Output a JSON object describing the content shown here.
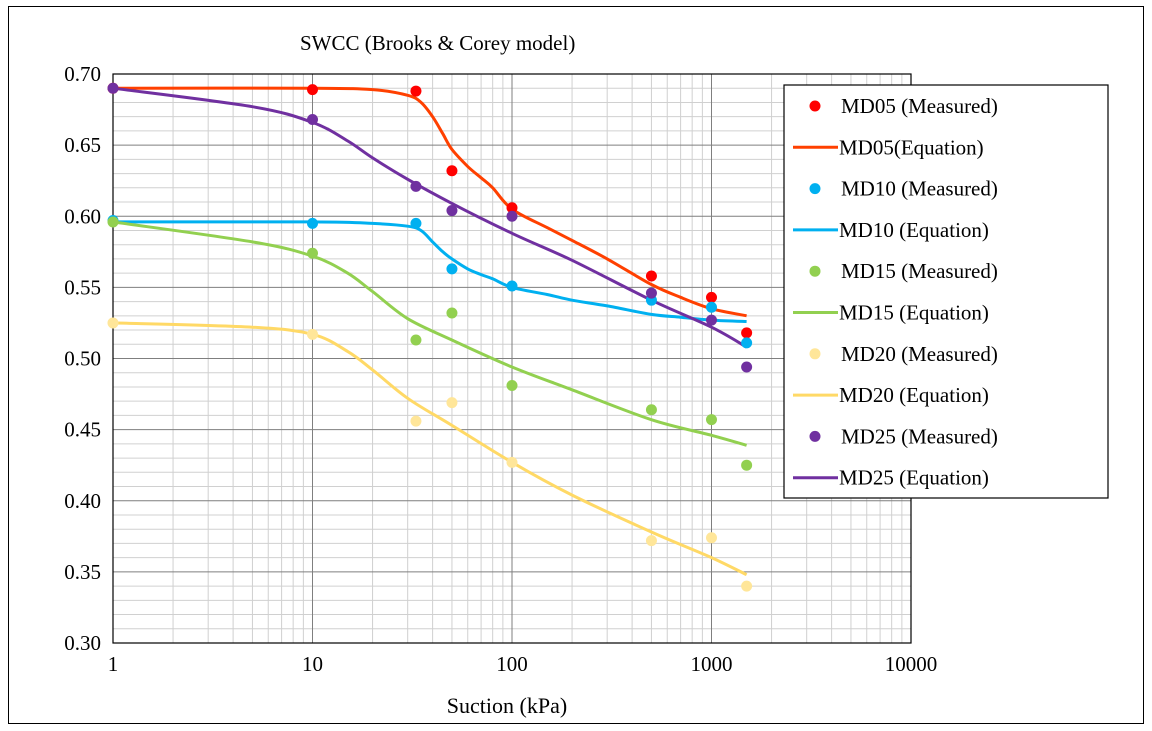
{
  "chart_data": {
    "type": "scatter",
    "title": "SWCC (Brooks & Corey model)",
    "xlabel": "Suction (kPa)",
    "ylabel": "",
    "xscale": "log",
    "xlim": [
      1,
      10000
    ],
    "ylim": [
      0.3,
      0.7
    ],
    "x_ticks": [
      1,
      10,
      100,
      1000,
      10000
    ],
    "x_tick_labels": [
      "1",
      "10",
      "100",
      "1000",
      "10000"
    ],
    "y_ticks": [
      0.3,
      0.35,
      0.4,
      0.45,
      0.5,
      0.55,
      0.6,
      0.65,
      0.7
    ],
    "y_tick_labels": [
      "0.30",
      "0.35",
      "0.40",
      "0.45",
      "0.50",
      "0.55",
      "0.60",
      "0.65",
      "0.70"
    ],
    "grid": true,
    "legend_position": "right",
    "series": [
      {
        "name": "MD05 (Measured)",
        "kind": "points",
        "color": "#ff0000",
        "x": [
          1,
          10,
          33,
          50,
          100,
          500,
          1000,
          1500
        ],
        "y": [
          0.69,
          0.689,
          0.688,
          0.632,
          0.606,
          0.558,
          0.543,
          0.518
        ]
      },
      {
        "name": "MD05(Equation)",
        "kind": "line",
        "color": "#ff4000",
        "x": [
          1,
          10,
          20,
          30,
          35,
          40,
          45,
          50,
          60,
          70,
          80,
          100,
          150,
          200,
          300,
          500,
          700,
          1000,
          1500
        ],
        "y": [
          0.69,
          0.69,
          0.689,
          0.685,
          0.68,
          0.67,
          0.658,
          0.647,
          0.635,
          0.627,
          0.62,
          0.605,
          0.592,
          0.583,
          0.57,
          0.552,
          0.543,
          0.535,
          0.53
        ]
      },
      {
        "name": "MD10 (Measured)",
        "kind": "points",
        "color": "#00b0f0",
        "x": [
          1,
          10,
          33,
          50,
          100,
          500,
          1000,
          1500
        ],
        "y": [
          0.597,
          0.595,
          0.595,
          0.563,
          0.551,
          0.541,
          0.536,
          0.511
        ]
      },
      {
        "name": "MD10 (Equation)",
        "kind": "line",
        "color": "#00b0f0",
        "x": [
          1,
          10,
          20,
          30,
          35,
          40,
          45,
          50,
          60,
          70,
          80,
          100,
          150,
          200,
          300,
          500,
          700,
          1000,
          1500
        ],
        "y": [
          0.596,
          0.596,
          0.595,
          0.593,
          0.59,
          0.582,
          0.575,
          0.57,
          0.563,
          0.559,
          0.556,
          0.55,
          0.545,
          0.541,
          0.537,
          0.531,
          0.529,
          0.527,
          0.526
        ]
      },
      {
        "name": "MD15 (Measured)",
        "kind": "points",
        "color": "#92d050",
        "x": [
          1,
          10,
          33,
          50,
          100,
          500,
          1000,
          1500
        ],
        "y": [
          0.596,
          0.574,
          0.513,
          0.532,
          0.481,
          0.464,
          0.457,
          0.425
        ]
      },
      {
        "name": "MD15 (Equation)",
        "kind": "line",
        "color": "#92d050",
        "x": [
          1,
          5,
          10,
          15,
          20,
          30,
          50,
          100,
          200,
          500,
          1000,
          1500
        ],
        "y": [
          0.596,
          0.582,
          0.572,
          0.56,
          0.547,
          0.528,
          0.513,
          0.494,
          0.478,
          0.457,
          0.446,
          0.439
        ]
      },
      {
        "name": "MD20 (Measured)",
        "kind": "points",
        "color": "#ffe699",
        "x": [
          1,
          10,
          33,
          50,
          100,
          500,
          1000,
          1500
        ],
        "y": [
          0.525,
          0.517,
          0.456,
          0.469,
          0.427,
          0.372,
          0.374,
          0.34
        ]
      },
      {
        "name": "MD20 (Equation)",
        "kind": "line",
        "color": "#ffd966",
        "x": [
          1,
          5,
          10,
          15,
          20,
          30,
          50,
          100,
          200,
          500,
          1000,
          1500
        ],
        "y": [
          0.525,
          0.522,
          0.517,
          0.505,
          0.492,
          0.472,
          0.453,
          0.427,
          0.404,
          0.378,
          0.36,
          0.348
        ]
      },
      {
        "name": "MD25 (Measured)",
        "kind": "points",
        "color": "#7030a0",
        "x": [
          1,
          10,
          33,
          50,
          100,
          500,
          1000,
          1500
        ],
        "y": [
          0.69,
          0.668,
          0.621,
          0.604,
          0.6,
          0.546,
          0.527,
          0.494
        ]
      },
      {
        "name": "MD25 (Equation)",
        "kind": "line",
        "color": "#7030a0",
        "x": [
          1,
          5,
          10,
          15,
          20,
          30,
          50,
          100,
          200,
          500,
          1000,
          1500
        ],
        "y": [
          0.69,
          0.677,
          0.666,
          0.653,
          0.641,
          0.626,
          0.609,
          0.588,
          0.569,
          0.541,
          0.522,
          0.508
        ]
      }
    ]
  }
}
